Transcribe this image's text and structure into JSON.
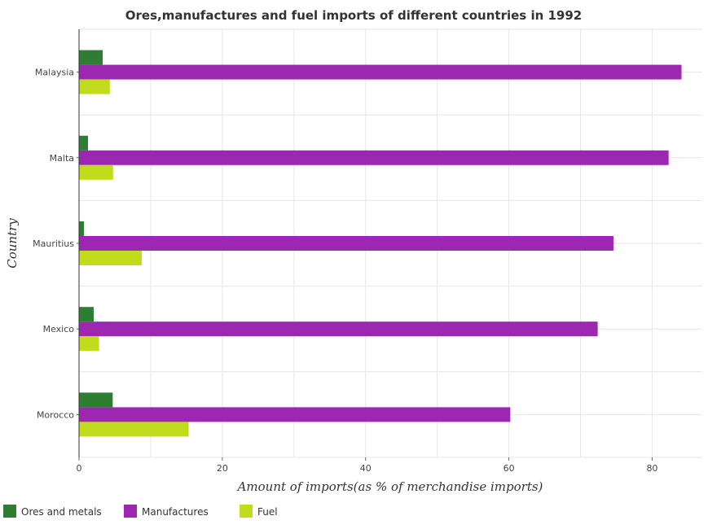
{
  "chart_data": {
    "type": "bar",
    "orientation": "horizontal",
    "title": "Ores,manufactures and fuel imports of different countries in 1992",
    "xlabel": "Amount of imports(as % of merchandise imports)",
    "ylabel": "Country",
    "xlim": [
      0,
      87
    ],
    "xticks": [
      0,
      20,
      40,
      60,
      80
    ],
    "grid": true,
    "legend_position": "bottom-left",
    "categories": [
      "Malaysia",
      "Malta",
      "Mauritius",
      "Mexico",
      "Morocco"
    ],
    "series": [
      {
        "name": "Ores and metals",
        "color": "#2e7d32",
        "values": [
          3.3,
          1.25,
          0.7,
          2.05,
          4.7
        ]
      },
      {
        "name": "Manufactures",
        "color": "#9c27b0",
        "values": [
          84.1,
          82.3,
          74.6,
          72.4,
          60.2
        ]
      },
      {
        "name": "Fuel",
        "color": "#c0dc1c",
        "values": [
          4.3,
          4.75,
          8.75,
          2.8,
          15.3
        ]
      }
    ]
  }
}
